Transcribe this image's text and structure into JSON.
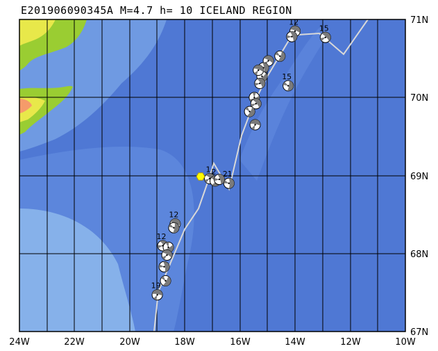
{
  "title": "E201906090345A  M=4.7  h= 10 ICELAND REGION",
  "colors": {
    "ocean_deep": "#4f78d4",
    "ocean_mid": "#5c86dc",
    "ocean_shelf": "#6f9ae2",
    "ocean_shallow": "#86b1ea",
    "land_low": "#9acd32",
    "land_mid": "#e8e84a",
    "land_high": "#f59b6a",
    "plate_boundary": "#d8d8d8",
    "grid": "#000000",
    "epicenter": "#ffff00",
    "beachball_fill": "#7a7a7a"
  },
  "lon_labels": [
    "24W",
    "22W",
    "20W",
    "18W",
    "16W",
    "14W",
    "12W",
    "10W"
  ],
  "lat_labels": [
    "71N",
    "70N",
    "69N",
    "68N",
    "67N"
  ],
  "epicenter": {
    "lon": -17.0,
    "lat": 68.98,
    "icon": "yellow-hexagon"
  },
  "events": [
    {
      "lon": -14.0,
      "lat": 70.85,
      "label": "12",
      "rot": 20
    },
    {
      "lon": -14.12,
      "lat": 70.78,
      "label": "",
      "rot": 70
    },
    {
      "lon": -12.9,
      "lat": 70.77,
      "label": "15",
      "rot": 45
    },
    {
      "lon": -14.55,
      "lat": 70.53,
      "label": "",
      "rot": 110
    },
    {
      "lon": -14.97,
      "lat": 70.47,
      "label": "",
      "rot": 30
    },
    {
      "lon": -15.15,
      "lat": 70.38,
      "label": "",
      "rot": 80
    },
    {
      "lon": -15.2,
      "lat": 70.27,
      "label": "",
      "rot": 140
    },
    {
      "lon": -15.28,
      "lat": 70.18,
      "label": "",
      "rot": 60
    },
    {
      "lon": -15.33,
      "lat": 70.35,
      "label": "",
      "rot": 20
    },
    {
      "lon": -14.25,
      "lat": 70.15,
      "label": "15",
      "rot": 100
    },
    {
      "lon": -15.48,
      "lat": 70.0,
      "label": "",
      "rot": 160
    },
    {
      "lon": -15.42,
      "lat": 69.92,
      "label": "",
      "rot": 50
    },
    {
      "lon": -15.65,
      "lat": 69.82,
      "label": "",
      "rot": 120
    },
    {
      "lon": -15.45,
      "lat": 69.65,
      "label": "",
      "rot": 10
    },
    {
      "lon": -16.4,
      "lat": 68.9,
      "label": "21",
      "rot": 90
    },
    {
      "lon": -17.1,
      "lat": 68.96,
      "label": "1",
      "rot": 40
    },
    {
      "lon": -16.9,
      "lat": 68.93,
      "label": "2",
      "rot": 130
    },
    {
      "lon": -16.75,
      "lat": 68.95,
      "label": "",
      "rot": 70
    },
    {
      "lon": -18.35,
      "lat": 68.38,
      "label": "12",
      "rot": 20
    },
    {
      "lon": -18.4,
      "lat": 68.33,
      "label": "",
      "rot": 100
    },
    {
      "lon": -18.8,
      "lat": 68.1,
      "label": "12",
      "rot": 60
    },
    {
      "lon": -18.6,
      "lat": 68.08,
      "label": "",
      "rot": 150
    },
    {
      "lon": -18.65,
      "lat": 67.98,
      "label": "",
      "rot": 30
    },
    {
      "lon": -18.75,
      "lat": 67.83,
      "label": "",
      "rot": 80
    },
    {
      "lon": -18.7,
      "lat": 67.65,
      "label": "",
      "rot": 120
    },
    {
      "lon": -19.0,
      "lat": 67.47,
      "label": "19",
      "rot": 10
    }
  ]
}
